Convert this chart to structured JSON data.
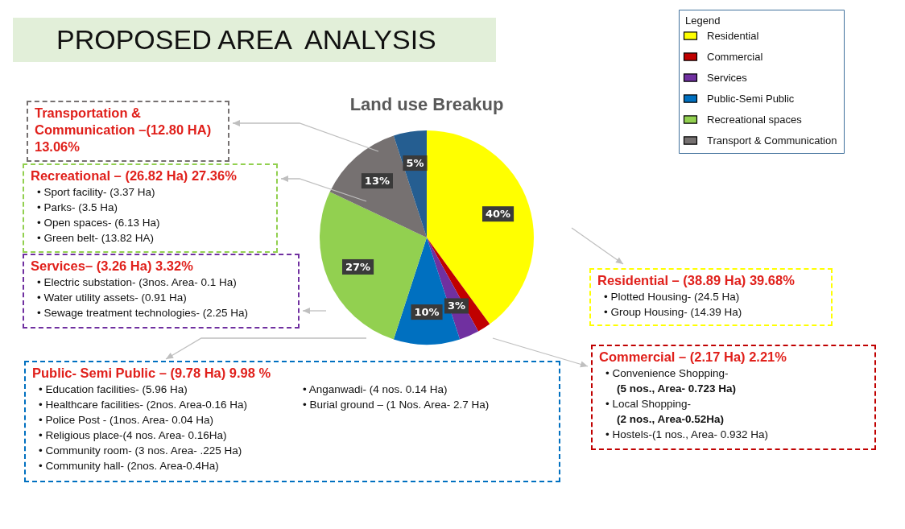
{
  "chart_data": {
    "type": "pie",
    "title": "PROPOSED AREA  ANALYSIS",
    "subtitle": "Land use Breakup",
    "legend_title": "Legend",
    "legend": "top right",
    "categories": [
      "Residential",
      "Commercial",
      "Services",
      "Public-Semi Public",
      "Recreational spaces",
      "Transport & Communication",
      null
    ],
    "values": [
      40,
      2,
      3,
      10,
      27,
      13,
      5
    ],
    "colors": [
      "#ffff00",
      "#c00000",
      "#7030a0",
      "#0070c0",
      "#92d050",
      "#767171",
      "#255e91"
    ],
    "value_labels": [
      "40%",
      null,
      "3%",
      "10%",
      "27%",
      "13%",
      "5%"
    ],
    "annotations": [
      "Transportation & Communication –(12.80 HA) 13.06%",
      "Recreational – (26.82 Ha) 27.36%\n• Sport facility- (3.37 Ha)\n• Parks- (3.5 Ha)\n• Open spaces- (6.13 Ha)\n• Green belt- (13.82 HA)",
      "Services– (3.26 Ha) 3.32%\n• Electric substation- (3nos. Area- 0.1 Ha)\n• Water utility assets- (0.91 Ha)\n• Sewage treatment technologies- (2.25 Ha)",
      "Residential – (38.89 Ha) 39.68%\n• Plotted Housing- (24.5 Ha)\n• Group Housing- (14.39 Ha)",
      "Commercial – (2.17 Ha)  2.21%\n• Convenience Shopping-\n(5 nos., Area- 0.723 Ha)\n• Local Shopping-\n(2 nos., Area-0.52Ha)\n• Hostels-(1 nos., Area- 0.932 Ha)",
      "Public- Semi Public – (9.78 Ha)  9.98 %\n• Education facilities- (5.96 Ha)\n• Healthcare facilities- (2nos. Area-0.16 Ha)\n• Police  Post - (1nos. Area- 0.04 Ha)\n• Religious place-(4 nos. Area- 0.16Ha)\n• Community room- (3 nos. Area- .225 Ha)\n• Community hall- (2nos. Area-0.4Ha)\n• Anganwadi- (4 nos. 0.14 Ha)\n• Burial ground – (1 Nos. Area- 2.7 Ha)"
    ]
  }
}
